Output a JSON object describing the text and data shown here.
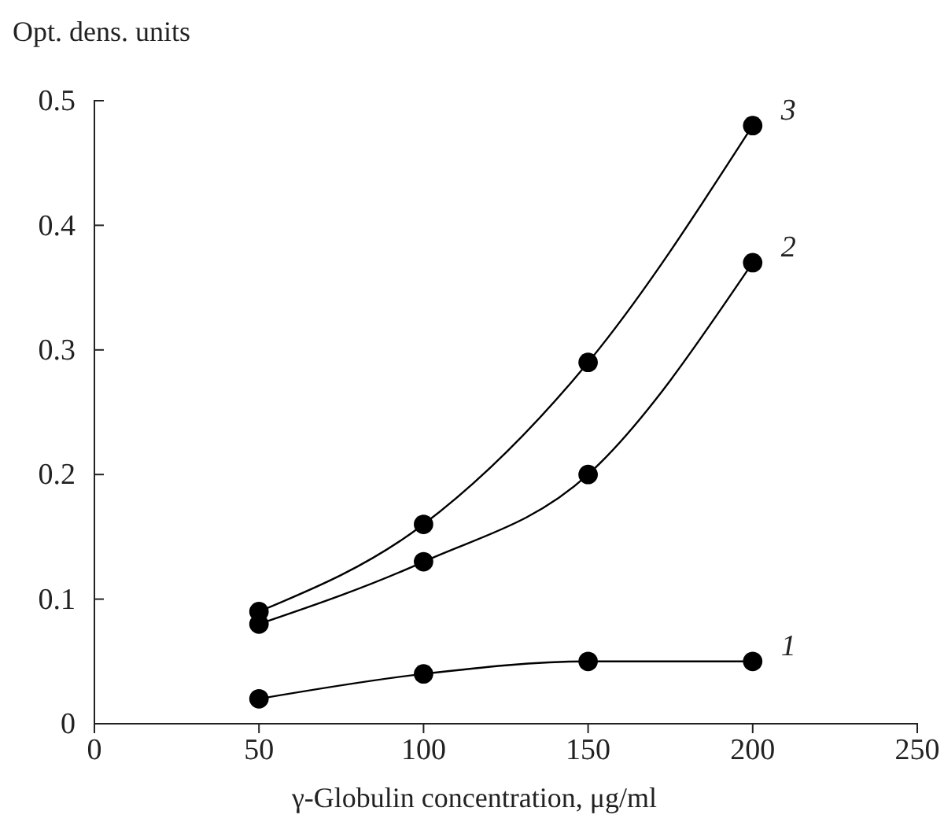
{
  "chart_data": {
    "type": "line",
    "xlabel": "γ-Globulin concentration, μg/ml",
    "ylabel": "Opt. dens. units",
    "x": [
      50,
      100,
      150,
      200
    ],
    "series": [
      {
        "name": "1",
        "color": "#000000",
        "values": [
          0.02,
          0.04,
          0.05,
          0.05
        ]
      },
      {
        "name": "2",
        "color": "#000000",
        "values": [
          0.08,
          0.13,
          0.2,
          0.37
        ]
      },
      {
        "name": "3",
        "color": "#000000",
        "values": [
          0.09,
          0.16,
          0.29,
          0.48
        ]
      }
    ],
    "xlim": [
      0,
      250
    ],
    "xticks": [
      0,
      50,
      100,
      150,
      200,
      250
    ],
    "ylim": [
      0,
      0.5
    ],
    "yticks": [
      {
        "value": 0,
        "label": "0"
      },
      {
        "value": 0.1,
        "label": "0.1"
      },
      {
        "value": 0.2,
        "label": "0.2"
      },
      {
        "value": 0.3,
        "label": "0.3"
      },
      {
        "value": 0.4,
        "label": "0.4"
      },
      {
        "value": 0.5,
        "label": "0.5"
      }
    ],
    "grid": false,
    "legend": false,
    "marker": "circle",
    "line_style": "solid"
  }
}
